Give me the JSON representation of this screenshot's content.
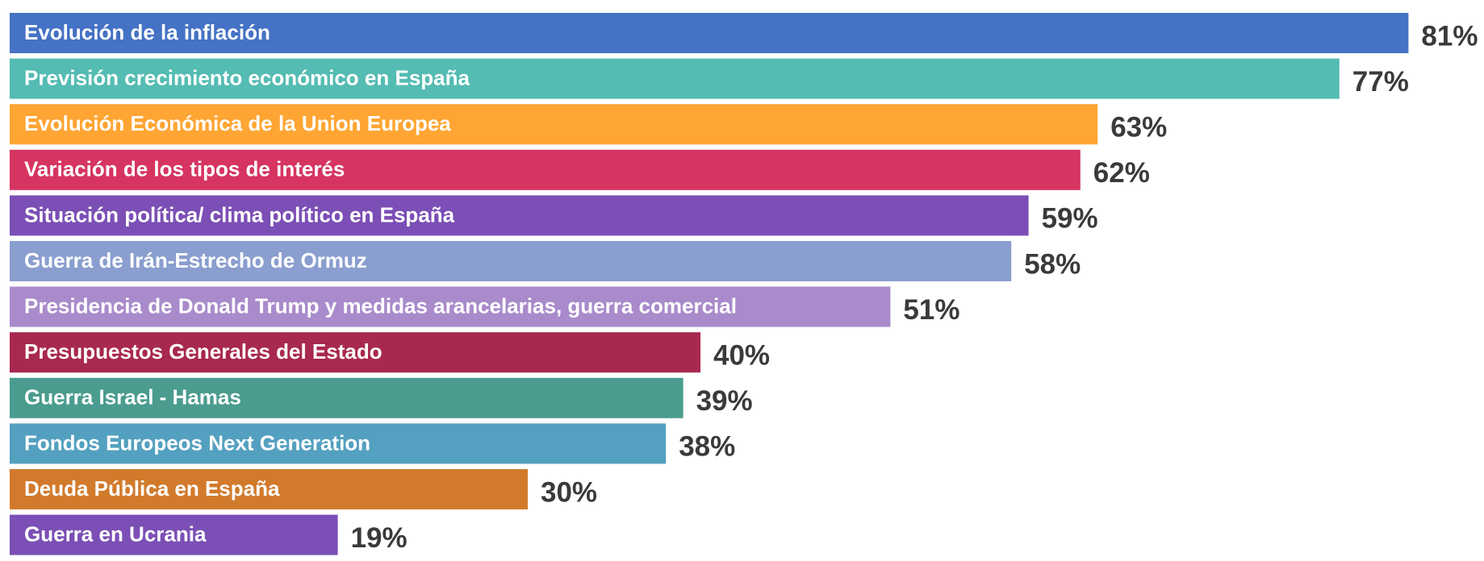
{
  "chart_data": {
    "type": "barh",
    "categories": [
      "Evolución de la inflación",
      "Previsión crecimiento económico en España",
      "Evolución Económica de la Union Europea",
      "Variación de los tipos de interés",
      "Situación política/ clima político en España",
      "Guerra de Irán-Estrecho de Ormuz",
      "Presidencia de Donald Trump y medidas arancelarias, guerra comercial",
      "Presupuestos Generales del Estado",
      "Guerra Israel - Hamas",
      "Fondos Europeos Next Generation",
      "Deuda Pública en España",
      "Guerra en Ucrania"
    ],
    "values": [
      81,
      77,
      63,
      62,
      59,
      58,
      51,
      40,
      39,
      38,
      30,
      19
    ],
    "value_labels": [
      "81%",
      "77%",
      "63%",
      "62%",
      "59%",
      "58%",
      "51%",
      "40%",
      "39%",
      "38%",
      "30%",
      "19%"
    ],
    "colors": [
      "#4472c4",
      "#54bcb2",
      "#ffa533",
      "#d63461",
      "#7b4fb5",
      "#8a9ecf",
      "#a98bcb",
      "#a8294f",
      "#4a9c8f",
      "#54a0c0",
      "#d27a2c",
      "#7b4fb5"
    ]
  }
}
